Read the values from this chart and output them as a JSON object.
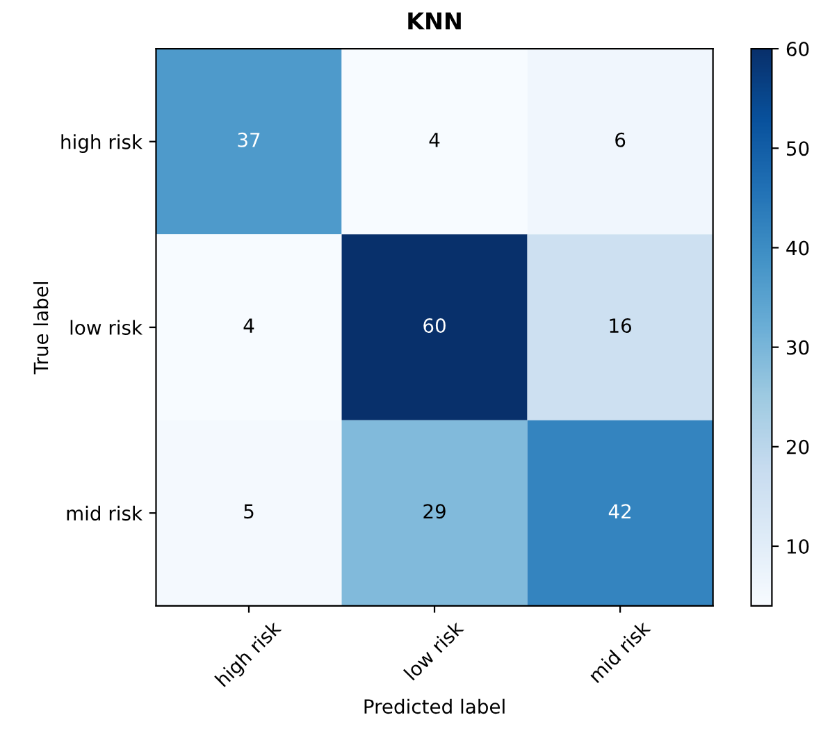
{
  "chart_data": {
    "type": "heatmap",
    "title": "KNN",
    "xlabel": "Predicted label",
    "ylabel": "True label",
    "categories": [
      "high risk",
      "low risk",
      "mid risk"
    ],
    "y_categories": [
      "high risk",
      "low risk",
      "mid risk"
    ],
    "cells": [
      [
        37,
        4,
        6
      ],
      [
        4,
        60,
        16
      ],
      [
        5,
        29,
        42
      ]
    ],
    "data_labels": true,
    "clim": [
      4,
      60
    ],
    "cticks": [
      10,
      20,
      30,
      40,
      50,
      60
    ]
  }
}
